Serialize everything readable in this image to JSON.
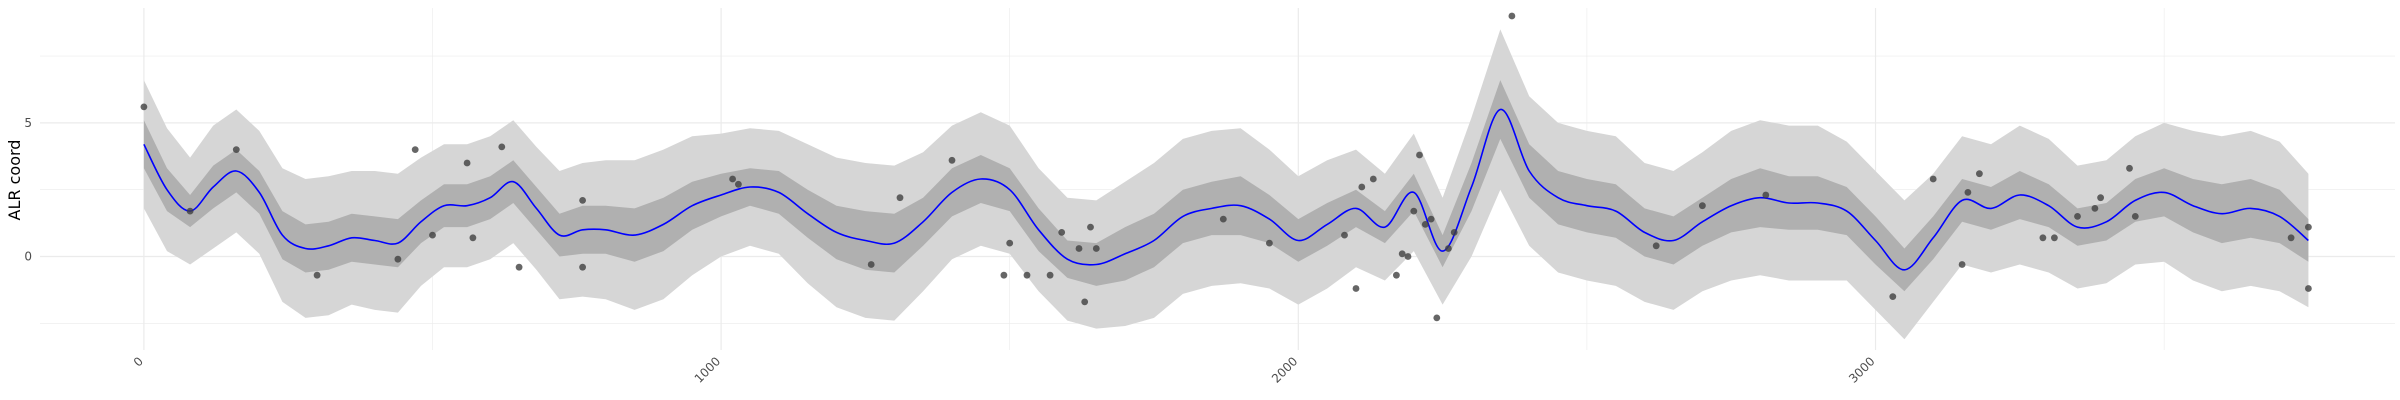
{
  "chart_data": {
    "type": "line",
    "title": "",
    "xlabel": "",
    "ylabel": "ALR coord",
    "xlim": [
      -180,
      3900
    ],
    "ylim": [
      -3.5,
      9.3
    ],
    "x_ticks": [
      0,
      1000,
      2000,
      3000
    ],
    "x_tick_labels": [
      "0",
      "1000",
      "2000",
      "3000"
    ],
    "y_ticks": [
      0,
      5
    ],
    "y_tick_labels": [
      "0",
      "5"
    ],
    "grid": true,
    "legend": "none",
    "colors": {
      "mean_line": "#0000ff",
      "inner_band": "#b0b0b0",
      "outer_band": "#d6d6d6",
      "points": "#404040",
      "grid": "#ebebeb"
    },
    "series": [
      {
        "type": "line",
        "x": [
          0,
          40,
          80,
          120,
          160,
          200,
          240,
          280,
          320,
          360,
          400,
          440,
          480,
          520,
          560,
          600,
          640,
          680,
          720,
          760,
          800,
          850,
          900,
          950,
          1000,
          1050,
          1100,
          1150,
          1200,
          1250,
          1300,
          1350,
          1400,
          1450,
          1500,
          1550,
          1600,
          1650,
          1700,
          1750,
          1800,
          1850,
          1900,
          1950,
          2000,
          2050,
          2100,
          2150,
          2200,
          2250,
          2300,
          2350,
          2400,
          2450,
          2500,
          2550,
          2600,
          2650,
          2700,
          2750,
          2800,
          2850,
          2900,
          2950,
          3000,
          3050,
          3100,
          3150,
          3200,
          3250,
          3300,
          3350,
          3400,
          3450,
          3500,
          3550,
          3600,
          3650,
          3700,
          3750
        ],
        "mean": [
          4.2,
          2.5,
          1.7,
          2.6,
          3.2,
          2.4,
          0.8,
          0.3,
          0.4,
          0.7,
          0.6,
          0.5,
          1.3,
          1.9,
          1.9,
          2.2,
          2.8,
          1.8,
          0.8,
          1.0,
          1.0,
          0.8,
          1.2,
          1.9,
          2.3,
          2.6,
          2.4,
          1.6,
          0.9,
          0.6,
          0.5,
          1.3,
          2.4,
          2.9,
          2.5,
          1.0,
          -0.1,
          -0.3,
          0.1,
          0.6,
          1.5,
          1.8,
          1.9,
          1.4,
          0.6,
          1.2,
          1.8,
          1.1,
          2.4,
          0.2,
          2.6,
          5.5,
          3.2,
          2.2,
          1.9,
          1.7,
          0.9,
          0.6,
          1.3,
          1.9,
          2.2,
          2.0,
          2.0,
          1.7,
          0.6,
          -0.5,
          0.7,
          2.1,
          1.8,
          2.3,
          1.9,
          1.1,
          1.3,
          2.1,
          2.4,
          1.9,
          1.6,
          1.8,
          1.5,
          0.6
        ],
        "inner_half": [
          0.9,
          0.8,
          0.6,
          0.8,
          0.8,
          0.8,
          0.9,
          0.9,
          0.9,
          0.9,
          0.9,
          0.9,
          0.8,
          0.8,
          0.8,
          0.8,
          0.8,
          0.8,
          0.8,
          0.9,
          0.9,
          1.0,
          1.0,
          0.9,
          0.8,
          0.7,
          0.8,
          0.9,
          1.0,
          1.1,
          1.1,
          0.9,
          0.9,
          0.9,
          0.8,
          0.8,
          0.7,
          0.8,
          1.0,
          1.0,
          1.0,
          1.0,
          1.1,
          0.9,
          0.8,
          0.8,
          0.7,
          0.6,
          0.7,
          0.6,
          0.9,
          1.1,
          1.0,
          1.0,
          1.0,
          1.0,
          0.9,
          0.9,
          0.9,
          1.0,
          1.1,
          1.0,
          1.0,
          0.9,
          0.9,
          0.8,
          0.8,
          0.8,
          0.8,
          0.9,
          0.8,
          0.7,
          0.7,
          0.8,
          0.9,
          1.0,
          1.1,
          1.1,
          1.0,
          0.8
        ],
        "outer_half": [
          2.4,
          2.3,
          2.0,
          2.3,
          2.3,
          2.3,
          2.5,
          2.6,
          2.6,
          2.5,
          2.6,
          2.6,
          2.4,
          2.3,
          2.3,
          2.3,
          2.3,
          2.3,
          2.4,
          2.5,
          2.6,
          2.8,
          2.8,
          2.6,
          2.3,
          2.2,
          2.3,
          2.6,
          2.8,
          2.9,
          2.9,
          2.6,
          2.5,
          2.5,
          2.4,
          2.3,
          2.3,
          2.4,
          2.7,
          2.9,
          2.9,
          2.9,
          2.9,
          2.6,
          2.4,
          2.4,
          2.2,
          2.0,
          2.2,
          2.0,
          2.6,
          3.0,
          2.8,
          2.8,
          2.8,
          2.8,
          2.6,
          2.6,
          2.6,
          2.8,
          2.9,
          2.9,
          2.9,
          2.6,
          2.6,
          2.6,
          2.4,
          2.4,
          2.4,
          2.6,
          2.5,
          2.3,
          2.3,
          2.4,
          2.6,
          2.8,
          2.9,
          2.9,
          2.8,
          2.5
        ]
      },
      {
        "type": "scatter",
        "points": [
          [
            0,
            5.6
          ],
          [
            80,
            1.7
          ],
          [
            160,
            4.0
          ],
          [
            300,
            -0.7
          ],
          [
            440,
            -0.1
          ],
          [
            470,
            4.0
          ],
          [
            500,
            0.8
          ],
          [
            560,
            3.5
          ],
          [
            570,
            0.7
          ],
          [
            620,
            4.1
          ],
          [
            650,
            -0.4
          ],
          [
            760,
            2.1
          ],
          [
            760,
            -0.4
          ],
          [
            1020,
            2.9
          ],
          [
            1030,
            2.7
          ],
          [
            1260,
            -0.3
          ],
          [
            1310,
            2.2
          ],
          [
            1400,
            3.6
          ],
          [
            1490,
            -0.7
          ],
          [
            1500,
            0.5
          ],
          [
            1530,
            -0.7
          ],
          [
            1570,
            -0.7
          ],
          [
            1590,
            0.9
          ],
          [
            1620,
            0.3
          ],
          [
            1630,
            -1.7
          ],
          [
            1640,
            1.1
          ],
          [
            1650,
            0.3
          ],
          [
            1870,
            1.4
          ],
          [
            1950,
            0.5
          ],
          [
            2080,
            0.8
          ],
          [
            2100,
            -1.2
          ],
          [
            2110,
            2.6
          ],
          [
            2130,
            2.9
          ],
          [
            2170,
            -0.7
          ],
          [
            2180,
            0.1
          ],
          [
            2190,
            0.0
          ],
          [
            2200,
            1.7
          ],
          [
            2210,
            3.8
          ],
          [
            2220,
            1.2
          ],
          [
            2230,
            1.4
          ],
          [
            2240,
            -2.3
          ],
          [
            2260,
            0.3
          ],
          [
            2270,
            0.9
          ],
          [
            2370,
            9.0
          ],
          [
            2620,
            0.4
          ],
          [
            2700,
            1.9
          ],
          [
            2810,
            2.3
          ],
          [
            3030,
            -1.5
          ],
          [
            3100,
            2.9
          ],
          [
            3150,
            -0.3
          ],
          [
            3160,
            2.4
          ],
          [
            3180,
            3.1
          ],
          [
            3290,
            0.7
          ],
          [
            3310,
            0.7
          ],
          [
            3350,
            1.5
          ],
          [
            3380,
            1.8
          ],
          [
            3390,
            2.2
          ],
          [
            3440,
            3.3
          ],
          [
            3450,
            1.5
          ],
          [
            3720,
            0.7
          ],
          [
            3750,
            1.1
          ],
          [
            3750,
            -1.2
          ]
        ]
      }
    ]
  }
}
